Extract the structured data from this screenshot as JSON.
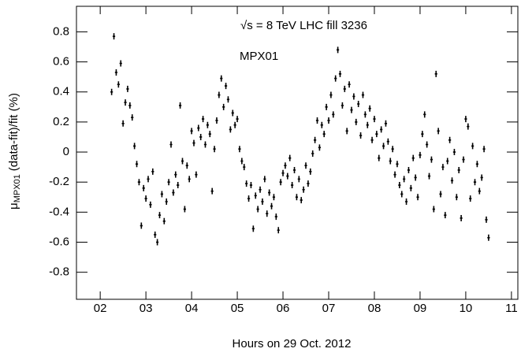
{
  "chart_data": {
    "type": "scatter",
    "annotations": [
      "√s = 8 TeV   LHC fill 3236",
      "MPX01"
    ],
    "x_label": "Hours on 29 Oct. 2012",
    "y_label": {
      "symbol": "μ",
      "subscript": "MPX01",
      "text": "(data-fit)/fit (%)"
    },
    "xlim": [
      1.48,
      11.14
    ],
    "ylim": [
      -0.98,
      0.97
    ],
    "xticks": [
      {
        "value": 2,
        "label": "02"
      },
      {
        "value": 3,
        "label": "03"
      },
      {
        "value": 4,
        "label": "04"
      },
      {
        "value": 5,
        "label": "05"
      },
      {
        "value": 6,
        "label": "06"
      },
      {
        "value": 7,
        "label": "07"
      },
      {
        "value": 8,
        "label": "08"
      },
      {
        "value": 9,
        "label": "09"
      },
      {
        "value": 10,
        "label": "10"
      },
      {
        "value": 11,
        "label": "11"
      }
    ],
    "yticks": [
      -0.8,
      -0.6,
      -0.4,
      -0.2,
      0,
      0.2,
      0.4,
      0.6,
      0.8
    ],
    "color": "#000000",
    "x": [
      2.25,
      2.3,
      2.35,
      2.4,
      2.45,
      2.5,
      2.55,
      2.6,
      2.65,
      2.7,
      2.75,
      2.8,
      2.85,
      2.9,
      2.95,
      3.0,
      3.05,
      3.1,
      3.15,
      3.2,
      3.25,
      3.3,
      3.35,
      3.4,
      3.45,
      3.5,
      3.55,
      3.6,
      3.65,
      3.7,
      3.75,
      3.8,
      3.85,
      3.9,
      3.95,
      4.0,
      4.05,
      4.1,
      4.15,
      4.2,
      4.25,
      4.3,
      4.35,
      4.4,
      4.45,
      4.5,
      4.55,
      4.6,
      4.65,
      4.7,
      4.75,
      4.8,
      4.85,
      4.9,
      4.95,
      5.0,
      5.05,
      5.1,
      5.15,
      5.2,
      5.25,
      5.3,
      5.35,
      5.4,
      5.45,
      5.5,
      5.55,
      5.6,
      5.65,
      5.7,
      5.75,
      5.8,
      5.85,
      5.9,
      5.95,
      6.0,
      6.05,
      6.1,
      6.15,
      6.2,
      6.25,
      6.3,
      6.35,
      6.4,
      6.45,
      6.5,
      6.55,
      6.6,
      6.65,
      6.7,
      6.75,
      6.8,
      6.85,
      6.9,
      6.95,
      7.0,
      7.05,
      7.1,
      7.15,
      7.2,
      7.25,
      7.3,
      7.35,
      7.4,
      7.45,
      7.5,
      7.55,
      7.6,
      7.65,
      7.7,
      7.75,
      7.8,
      7.85,
      7.9,
      7.95,
      8.0,
      8.05,
      8.1,
      8.15,
      8.2,
      8.25,
      8.3,
      8.35,
      8.4,
      8.45,
      8.5,
      8.55,
      8.6,
      8.65,
      8.7,
      8.75,
      8.8,
      8.85,
      8.9,
      8.95,
      9.0,
      9.05,
      9.1,
      9.15,
      9.2,
      9.25,
      9.3,
      9.35,
      9.4,
      9.45,
      9.5,
      9.55,
      9.6,
      9.65,
      9.7,
      9.75,
      9.8,
      9.85,
      9.9,
      9.95,
      10.0,
      10.05,
      10.1,
      10.15,
      10.2,
      10.25,
      10.3,
      10.35,
      10.4,
      10.45,
      10.5
    ],
    "y": [
      0.4,
      0.77,
      0.53,
      0.45,
      0.59,
      0.19,
      0.33,
      0.42,
      0.31,
      0.23,
      0.04,
      -0.08,
      -0.2,
      -0.49,
      -0.24,
      -0.31,
      -0.18,
      -0.35,
      -0.13,
      -0.55,
      -0.6,
      -0.42,
      -0.28,
      -0.46,
      -0.33,
      -0.2,
      0.05,
      -0.27,
      -0.15,
      -0.22,
      0.31,
      -0.06,
      -0.38,
      -0.09,
      -0.18,
      0.14,
      0.06,
      -0.15,
      0.16,
      0.1,
      0.22,
      0.05,
      0.18,
      0.12,
      -0.26,
      0.02,
      0.21,
      0.38,
      0.49,
      0.3,
      0.44,
      0.35,
      0.15,
      0.26,
      0.18,
      0.22,
      0.02,
      -0.06,
      -0.1,
      -0.21,
      -0.31,
      -0.22,
      -0.51,
      -0.29,
      -0.38,
      -0.25,
      -0.33,
      -0.18,
      -0.41,
      -0.27,
      -0.36,
      -0.3,
      -0.43,
      -0.52,
      -0.2,
      -0.14,
      -0.09,
      -0.16,
      -0.04,
      -0.22,
      -0.12,
      -0.3,
      -0.18,
      -0.32,
      -0.25,
      -0.09,
      -0.21,
      -0.13,
      -0.01,
      0.08,
      0.21,
      0.03,
      0.18,
      0.12,
      0.3,
      0.21,
      0.38,
      0.25,
      0.49,
      0.68,
      0.52,
      0.31,
      0.42,
      0.14,
      0.45,
      0.28,
      0.37,
      0.2,
      0.32,
      0.11,
      0.38,
      0.25,
      0.18,
      0.29,
      0.08,
      0.22,
      0.12,
      -0.04,
      0.15,
      0.04,
      0.19,
      0.07,
      -0.06,
      0.02,
      -0.15,
      -0.08,
      -0.22,
      -0.28,
      -0.18,
      -0.33,
      -0.12,
      -0.24,
      -0.04,
      -0.17,
      -0.3,
      -0.02,
      0.12,
      0.25,
      0.05,
      -0.16,
      -0.05,
      -0.38,
      0.52,
      0.14,
      -0.28,
      -0.1,
      -0.42,
      -0.06,
      0.08,
      -0.19,
      0.0,
      -0.3,
      -0.12,
      -0.44,
      -0.05,
      0.22,
      0.17,
      -0.31,
      0.04,
      -0.2,
      -0.08,
      -0.26,
      -0.17,
      0.02,
      -0.45,
      -0.57
    ]
  }
}
